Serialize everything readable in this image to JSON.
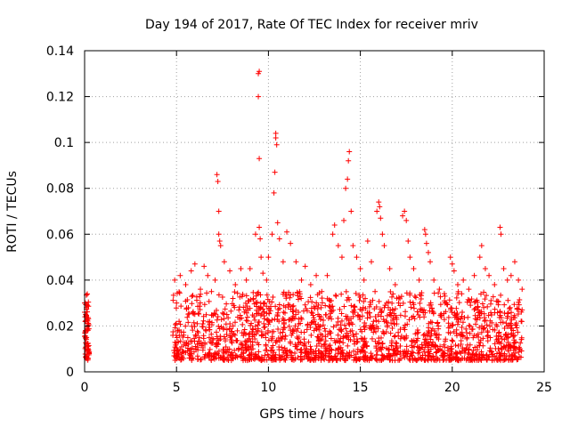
{
  "chart_data": {
    "type": "scatter",
    "title": "Day 194 of 2017, Rate Of TEC Index for receiver mriv",
    "xlabel": "GPS time / hours",
    "ylabel": "ROTI / TECUs",
    "xlim": [
      0,
      25
    ],
    "ylim": [
      0,
      0.14
    ],
    "x_ticks": [
      0,
      5,
      10,
      15,
      20,
      25
    ],
    "x_tick_labels": [
      "0",
      "5",
      "10",
      "15",
      "20",
      "25"
    ],
    "y_ticks": [
      0,
      0.02,
      0.04,
      0.06,
      0.08,
      0.1,
      0.12,
      0.14
    ],
    "y_tick_labels": [
      "0",
      "0.02",
      "0.04",
      "0.06",
      "0.08",
      "0.1",
      "0.12",
      "0.14"
    ],
    "grid": true,
    "marker": "+",
    "color": "#ff0000",
    "series": [
      {
        "name": "ROTI",
        "points": [
          [
            0.0,
            0.03
          ],
          [
            0.0,
            0.026
          ],
          [
            0.05,
            0.022
          ],
          [
            0.05,
            0.018
          ],
          [
            0.1,
            0.015
          ],
          [
            0.1,
            0.012
          ],
          [
            0.15,
            0.009
          ],
          [
            0.15,
            0.006
          ],
          [
            0.2,
            0.02
          ],
          [
            0.1,
            0.028
          ],
          [
            0.02,
            0.024
          ],
          [
            0.18,
            0.011
          ],
          [
            4.9,
            0.04
          ],
          [
            5.0,
            0.03
          ],
          [
            5.2,
            0.042
          ],
          [
            5.5,
            0.038
          ],
          [
            5.8,
            0.044
          ],
          [
            6.0,
            0.047
          ],
          [
            6.3,
            0.036
          ],
          [
            6.5,
            0.046
          ],
          [
            6.7,
            0.042
          ],
          [
            6.9,
            0.035
          ],
          [
            7.1,
            0.04
          ],
          [
            7.2,
            0.086
          ],
          [
            7.25,
            0.083
          ],
          [
            7.3,
            0.07
          ],
          [
            7.3,
            0.06
          ],
          [
            7.35,
            0.057
          ],
          [
            7.4,
            0.055
          ],
          [
            7.6,
            0.048
          ],
          [
            7.9,
            0.044
          ],
          [
            8.2,
            0.038
          ],
          [
            8.5,
            0.045
          ],
          [
            8.8,
            0.04
          ],
          [
            9.0,
            0.045
          ],
          [
            9.3,
            0.06
          ],
          [
            9.45,
            0.13
          ],
          [
            9.5,
            0.131
          ],
          [
            9.45,
            0.12
          ],
          [
            9.5,
            0.093
          ],
          [
            9.5,
            0.063
          ],
          [
            9.55,
            0.058
          ],
          [
            9.6,
            0.05
          ],
          [
            9.7,
            0.043
          ],
          [
            9.9,
            0.04
          ],
          [
            10.0,
            0.05
          ],
          [
            10.2,
            0.06
          ],
          [
            10.3,
            0.078
          ],
          [
            10.35,
            0.087
          ],
          [
            10.4,
            0.104
          ],
          [
            10.4,
            0.102
          ],
          [
            10.45,
            0.099
          ],
          [
            10.5,
            0.065
          ],
          [
            10.6,
            0.058
          ],
          [
            10.8,
            0.048
          ],
          [
            11.0,
            0.061
          ],
          [
            11.2,
            0.056
          ],
          [
            11.5,
            0.048
          ],
          [
            11.8,
            0.04
          ],
          [
            12.0,
            0.046
          ],
          [
            12.3,
            0.038
          ],
          [
            12.6,
            0.042
          ],
          [
            12.9,
            0.035
          ],
          [
            13.2,
            0.042
          ],
          [
            13.5,
            0.06
          ],
          [
            13.6,
            0.064
          ],
          [
            13.8,
            0.055
          ],
          [
            14.0,
            0.05
          ],
          [
            14.1,
            0.066
          ],
          [
            14.2,
            0.08
          ],
          [
            14.3,
            0.084
          ],
          [
            14.35,
            0.092
          ],
          [
            14.4,
            0.096
          ],
          [
            14.5,
            0.07
          ],
          [
            14.6,
            0.055
          ],
          [
            14.8,
            0.05
          ],
          [
            15.0,
            0.045
          ],
          [
            15.2,
            0.04
          ],
          [
            15.4,
            0.057
          ],
          [
            15.6,
            0.048
          ],
          [
            15.8,
            0.035
          ],
          [
            15.9,
            0.07
          ],
          [
            16.0,
            0.074
          ],
          [
            16.05,
            0.072
          ],
          [
            16.1,
            0.067
          ],
          [
            16.2,
            0.06
          ],
          [
            16.3,
            0.055
          ],
          [
            16.6,
            0.045
          ],
          [
            16.9,
            0.038
          ],
          [
            17.3,
            0.068
          ],
          [
            17.4,
            0.07
          ],
          [
            17.5,
            0.066
          ],
          [
            17.6,
            0.057
          ],
          [
            17.7,
            0.05
          ],
          [
            17.9,
            0.045
          ],
          [
            18.2,
            0.04
          ],
          [
            18.5,
            0.062
          ],
          [
            18.55,
            0.06
          ],
          [
            18.6,
            0.056
          ],
          [
            18.7,
            0.052
          ],
          [
            18.8,
            0.048
          ],
          [
            19.0,
            0.04
          ],
          [
            19.3,
            0.036
          ],
          [
            19.6,
            0.033
          ],
          [
            19.9,
            0.05
          ],
          [
            20.0,
            0.047
          ],
          [
            20.1,
            0.044
          ],
          [
            20.3,
            0.038
          ],
          [
            20.6,
            0.04
          ],
          [
            20.9,
            0.036
          ],
          [
            21.2,
            0.042
          ],
          [
            21.5,
            0.05
          ],
          [
            21.6,
            0.055
          ],
          [
            21.8,
            0.045
          ],
          [
            22.0,
            0.042
          ],
          [
            22.3,
            0.038
          ],
          [
            22.6,
            0.063
          ],
          [
            22.65,
            0.06
          ],
          [
            22.8,
            0.045
          ],
          [
            23.0,
            0.04
          ],
          [
            23.2,
            0.042
          ],
          [
            23.4,
            0.048
          ],
          [
            23.6,
            0.04
          ],
          [
            23.8,
            0.036
          ]
        ],
        "dense_band": {
          "description": "continuous cluster of points",
          "x_ranges": [
            [
              0.0,
              0.25
            ],
            [
              4.8,
              23.8
            ]
          ],
          "y_min": 0.005,
          "y_max": 0.035
        }
      }
    ]
  }
}
